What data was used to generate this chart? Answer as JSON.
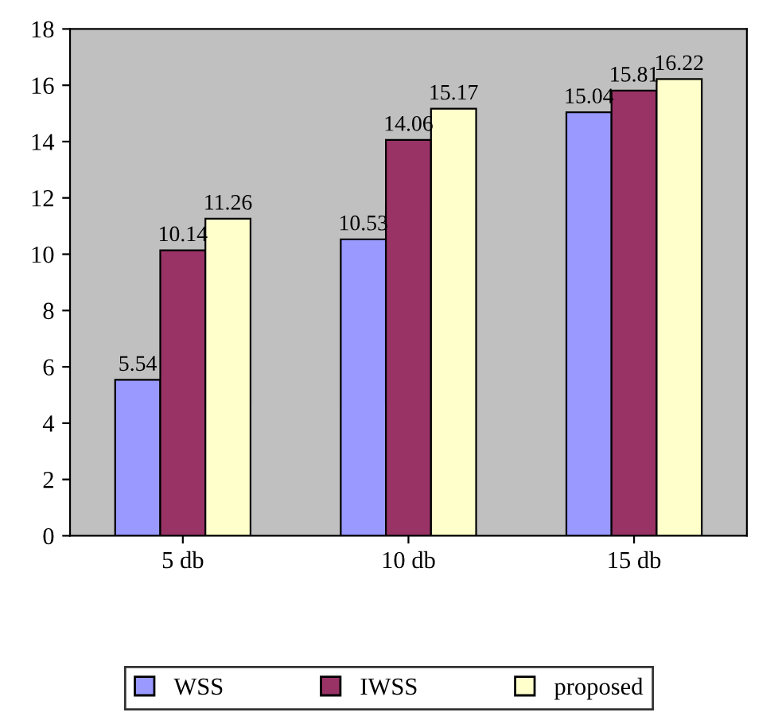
{
  "chart_data": {
    "type": "bar",
    "categories": [
      "5 db",
      "10 db",
      "15 db"
    ],
    "series": [
      {
        "name": "WSS",
        "color": "#9999ff",
        "values": [
          5.54,
          10.53,
          15.04
        ]
      },
      {
        "name": "IWSS",
        "color": "#993366",
        "values": [
          10.14,
          14.06,
          15.81
        ]
      },
      {
        "name": "proposed",
        "color": "#ffffcc",
        "values": [
          11.26,
          15.17,
          16.22
        ]
      }
    ],
    "ylim": [
      0,
      18
    ],
    "yticks": [
      0,
      2,
      4,
      6,
      8,
      10,
      12,
      14,
      16,
      18
    ],
    "data_labels": true,
    "legend": "bottom",
    "grid": false
  }
}
